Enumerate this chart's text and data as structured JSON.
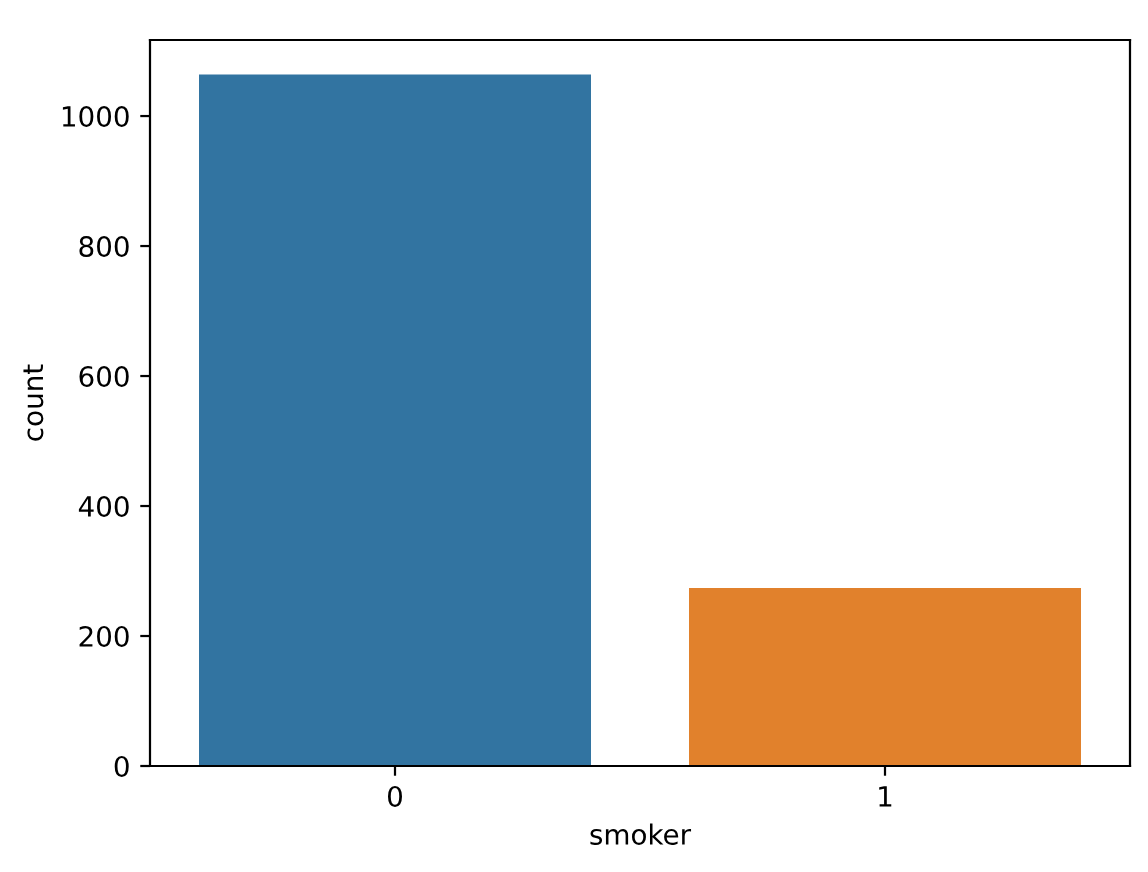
{
  "chart_data": {
    "type": "bar",
    "xlabel": "smoker",
    "ylabel": "count",
    "categories": [
      "0",
      "1"
    ],
    "values": [
      1064,
      274
    ],
    "colors": [
      "#3274a1",
      "#e1812c"
    ],
    "ylim": [
      0,
      1117
    ],
    "yticks": [
      0,
      200,
      400,
      600,
      800,
      1000
    ],
    "grid": false,
    "legend": false
  }
}
